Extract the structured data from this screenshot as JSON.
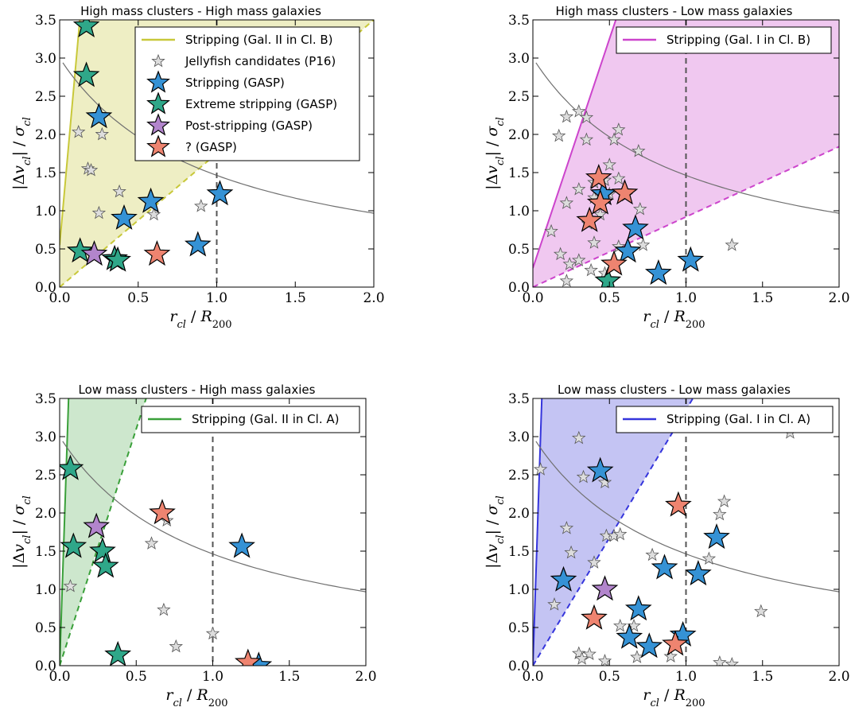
{
  "chart_data": [
    {
      "type": "scatter",
      "title": "High mass clusters - High mass galaxies",
      "xlabel": "r_cl / R_200",
      "ylabel": "|Δv_cl| / σ_cl",
      "xlim": [
        0,
        2
      ],
      "ylim": [
        0,
        3.5
      ],
      "xticks": [
        "0.0",
        "0.5",
        "1.0",
        "1.5",
        "2.0"
      ],
      "yticks": [
        "0.0",
        "0.5",
        "1.0",
        "1.5",
        "2.0",
        "2.5",
        "3.0",
        "3.5"
      ],
      "wedge": {
        "color": "#c8c83a",
        "fill": "#eeeec4",
        "solid_slope": 23,
        "solid_intercept": 0.55,
        "dashed_slope": 1.75
      },
      "legend_position": "upper-right",
      "legend": [
        {
          "kind": "line",
          "label": "Stripping (Gal. II in Cl. B)",
          "color": "#c8c83a"
        },
        {
          "kind": "star",
          "label": "Jellyfish candidates (P16)",
          "color": "#dddddd",
          "small": true
        },
        {
          "kind": "star",
          "label": "Stripping (GASP)",
          "color": "#3592d5"
        },
        {
          "kind": "star",
          "label": "Extreme stripping (GASP)",
          "color": "#2fa789"
        },
        {
          "kind": "star",
          "label": "Post-stripping (GASP)",
          "color": "#b285cc"
        },
        {
          "kind": "star",
          "label": "? (GASP)",
          "color": "#ee8470"
        }
      ],
      "candidates": [
        [
          0.12,
          2.03
        ],
        [
          0.27,
          2.0
        ],
        [
          0.18,
          1.55
        ],
        [
          0.2,
          1.53
        ],
        [
          0.38,
          1.25
        ],
        [
          0.25,
          0.97
        ],
        [
          0.9,
          1.06
        ],
        [
          0.6,
          0.95
        ]
      ],
      "series": [
        {
          "name": "Stripping (GASP)",
          "color": "#3592d5",
          "points": [
            [
              0.25,
              2.23
            ],
            [
              0.41,
              0.9
            ],
            [
              0.58,
              1.12
            ],
            [
              1.02,
              1.22
            ],
            [
              0.88,
              0.55
            ]
          ]
        },
        {
          "name": "Extreme stripping (GASP)",
          "color": "#2fa789",
          "points": [
            [
              0.17,
              3.42
            ],
            [
              0.17,
              2.77
            ],
            [
              0.13,
              0.47
            ],
            [
              0.35,
              0.37
            ],
            [
              0.37,
              0.35
            ]
          ]
        },
        {
          "name": "Post-stripping (GASP)",
          "color": "#b285cc",
          "points": [
            [
              0.22,
              0.43
            ]
          ]
        },
        {
          "name": "? (GASP)",
          "color": "#ee8470",
          "points": [
            [
              0.62,
              0.43
            ]
          ]
        }
      ]
    },
    {
      "type": "scatter",
      "title": "High mass clusters - Low mass galaxies",
      "xlabel": "r_cl / R_200",
      "ylabel": "|Δv_cl| / σ_cl",
      "xlim": [
        0,
        2
      ],
      "ylim": [
        0,
        3.5
      ],
      "xticks": [
        "0.0",
        "0.5",
        "1.0",
        "1.5",
        "2.0"
      ],
      "yticks": [
        "0.0",
        "0.5",
        "1.0",
        "1.5",
        "2.0",
        "2.5",
        "3.0",
        "3.5"
      ],
      "wedge": {
        "color": "#cc44cc",
        "fill": "#f0c8f0",
        "solid_slope": 6.0,
        "solid_intercept": 0.25,
        "dashed_slope": 0.92
      },
      "legend_position": "upper-right",
      "legend": [
        {
          "kind": "line",
          "label": "Stripping (Gal. I in Cl. B)",
          "color": "#cc44cc"
        }
      ],
      "candidates": [
        [
          0.3,
          2.3
        ],
        [
          0.35,
          2.22
        ],
        [
          0.22,
          2.23
        ],
        [
          0.17,
          1.98
        ],
        [
          0.35,
          1.93
        ],
        [
          0.56,
          2.06
        ],
        [
          0.53,
          1.93
        ],
        [
          0.69,
          1.78
        ],
        [
          0.5,
          1.6
        ],
        [
          0.47,
          1.4
        ],
        [
          0.4,
          1.37
        ],
        [
          0.3,
          1.28
        ],
        [
          0.22,
          1.1
        ],
        [
          0.12,
          0.73
        ],
        [
          0.5,
          1.22
        ],
        [
          0.56,
          1.42
        ],
        [
          0.61,
          1.2
        ],
        [
          0.4,
          1.17
        ],
        [
          0.44,
          0.95
        ],
        [
          0.7,
          1.02
        ],
        [
          0.36,
          0.83
        ],
        [
          0.56,
          0.53
        ],
        [
          0.72,
          0.55
        ],
        [
          0.4,
          0.58
        ],
        [
          0.18,
          0.43
        ],
        [
          0.3,
          0.35
        ],
        [
          0.24,
          0.3
        ],
        [
          0.38,
          0.22
        ],
        [
          0.47,
          0.18
        ],
        [
          0.22,
          0.08
        ],
        [
          1.3,
          0.55
        ]
      ],
      "series": [
        {
          "name": "Stripping (GASP)",
          "color": "#3592d5",
          "points": [
            [
              0.46,
              1.22
            ],
            [
              0.67,
              0.77
            ],
            [
              0.62,
              0.47
            ],
            [
              1.03,
              0.35
            ],
            [
              0.82,
              0.18
            ]
          ]
        },
        {
          "name": "Extreme stripping (GASP)",
          "color": "#2fa789",
          "points": [
            [
              0.49,
              0.08
            ]
          ]
        },
        {
          "name": "? (GASP)",
          "color": "#ee8470",
          "points": [
            [
              0.43,
              1.43
            ],
            [
              0.44,
              1.1
            ],
            [
              0.6,
              1.23
            ],
            [
              0.37,
              0.87
            ],
            [
              0.53,
              0.3
            ]
          ]
        }
      ]
    },
    {
      "type": "scatter",
      "title": "Low mass clusters - High mass galaxies",
      "xlabel": "r_cl / R_200",
      "ylabel": "|Δv_cl| / σ_cl",
      "xlim": [
        0,
        2
      ],
      "ylim": [
        0,
        3.5
      ],
      "xticks": [
        "0.0",
        "0.5",
        "1.0",
        "1.5",
        "2.0"
      ],
      "yticks": [
        "0.0",
        "0.5",
        "1.0",
        "1.5",
        "2.0",
        "2.5",
        "3.0",
        "3.5"
      ],
      "wedge": {
        "color": "#3aa03a",
        "fill": "#cde7cd",
        "solid_slope": 60,
        "solid_intercept": 0.0,
        "dashed_slope": 6.2
      },
      "legend_position": "upper-right",
      "legend": [
        {
          "kind": "line",
          "label": "Stripping (Gal. II in Cl. A)",
          "color": "#3aa03a"
        }
      ],
      "candidates": [
        [
          0.07,
          1.04
        ],
        [
          0.7,
          1.9
        ],
        [
          0.6,
          1.6
        ],
        [
          0.68,
          0.73
        ],
        [
          0.76,
          0.25
        ],
        [
          1.0,
          0.42
        ]
      ],
      "series": [
        {
          "name": "Stripping (GASP)",
          "color": "#3592d5",
          "points": [
            [
              1.19,
              1.56
            ],
            [
              1.3,
              0.0
            ]
          ]
        },
        {
          "name": "Extreme stripping (GASP)",
          "color": "#2fa789",
          "points": [
            [
              0.07,
              2.58
            ],
            [
              0.09,
              1.56
            ],
            [
              0.28,
              1.5
            ],
            [
              0.3,
              1.3
            ],
            [
              0.38,
              0.14
            ]
          ]
        },
        {
          "name": "Post-stripping (GASP)",
          "color": "#b285cc",
          "points": [
            [
              0.24,
              1.82
            ]
          ]
        },
        {
          "name": "? (GASP)",
          "color": "#ee8470",
          "points": [
            [
              0.67,
              2.0
            ],
            [
              1.23,
              0.04
            ]
          ]
        }
      ]
    },
    {
      "type": "scatter",
      "title": "Low mass clusters - Low mass galaxies",
      "xlabel": "r_cl / R_200",
      "ylabel": "|Δv_cl| / σ_cl",
      "xlim": [
        0,
        2
      ],
      "ylim": [
        0,
        3.5
      ],
      "xticks": [
        "0.0",
        "0.5",
        "1.0",
        "1.5",
        "2.0"
      ],
      "yticks": [
        "0.0",
        "0.5",
        "1.0",
        "1.5",
        "2.0",
        "2.5",
        "3.0",
        "3.5"
      ],
      "wedge": {
        "color": "#3535dc",
        "fill": "#c4c4f3",
        "solid_slope": 60,
        "solid_intercept": 0.0,
        "dashed_slope": 3.35
      },
      "legend_position": "upper-right",
      "legend": [
        {
          "kind": "line",
          "label": "Stripping (Gal. I in Cl. A)",
          "color": "#3535dc"
        }
      ],
      "candidates": [
        [
          0.05,
          2.57
        ],
        [
          0.3,
          2.98
        ],
        [
          0.33,
          2.47
        ],
        [
          0.47,
          2.4
        ],
        [
          0.48,
          1.7
        ],
        [
          0.53,
          1.7
        ],
        [
          0.57,
          1.72
        ],
        [
          0.22,
          1.8
        ],
        [
          0.25,
          1.48
        ],
        [
          0.4,
          1.35
        ],
        [
          0.14,
          0.8
        ],
        [
          0.3,
          0.16
        ],
        [
          0.37,
          0.15
        ],
        [
          0.32,
          0.09
        ],
        [
          0.47,
          0.06
        ],
        [
          0.57,
          0.52
        ],
        [
          0.66,
          0.52
        ],
        [
          0.78,
          1.45
        ],
        [
          1.22,
          1.98
        ],
        [
          1.25,
          2.15
        ],
        [
          1.15,
          1.4
        ],
        [
          1.49,
          0.71
        ],
        [
          1.68,
          3.05
        ],
        [
          0.9,
          0.12
        ],
        [
          1.22,
          0.04
        ],
        [
          1.3,
          0.02
        ],
        [
          0.68,
          0.11
        ]
      ],
      "series": [
        {
          "name": "Stripping (GASP)",
          "color": "#3592d5",
          "points": [
            [
              0.44,
              2.55
            ],
            [
              1.2,
              1.68
            ],
            [
              0.86,
              1.28
            ],
            [
              1.08,
              1.2
            ],
            [
              0.2,
              1.12
            ],
            [
              0.69,
              0.74
            ],
            [
              0.63,
              0.37
            ],
            [
              0.76,
              0.25
            ],
            [
              0.98,
              0.4
            ]
          ]
        },
        {
          "name": "Post-stripping (GASP)",
          "color": "#b285cc",
          "points": [
            [
              0.47,
              1.0
            ]
          ]
        },
        {
          "name": "? (GASP)",
          "color": "#ee8470",
          "points": [
            [
              0.95,
              2.1
            ],
            [
              0.4,
              0.62
            ],
            [
              0.93,
              0.28
            ]
          ]
        }
      ]
    }
  ],
  "styles": {
    "frame": "#000000",
    "dashed_vline": "#555555",
    "curve": "#707070",
    "candidate_fill": "#dddddd",
    "candidate_edge": "#555555"
  }
}
